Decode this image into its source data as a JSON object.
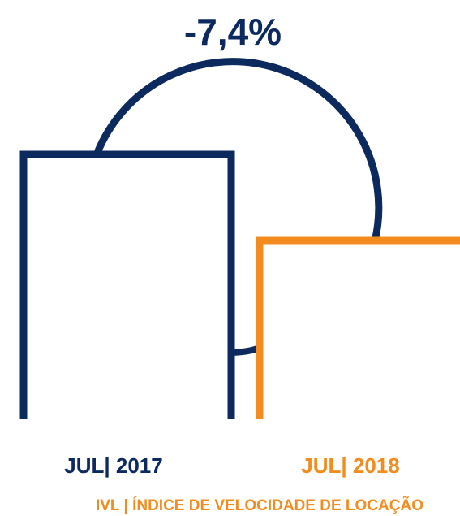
{
  "annotation": "-7,4%",
  "bars": [
    {
      "label": "JUL| 2017",
      "color": "#0d2a5e"
    },
    {
      "label": "JUL| 2018",
      "color": "#f28c1e"
    }
  ],
  "footer": "IVL | ÍNDICE DE VELOCIDADE DE LOCAÇÃO"
}
